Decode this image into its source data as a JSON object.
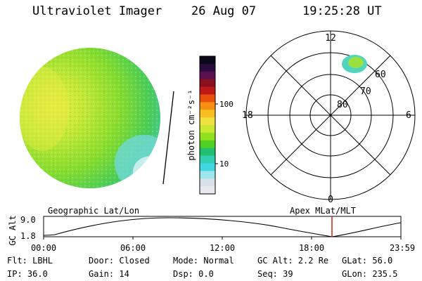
{
  "header": {
    "instrument": "Ultraviolet Imager",
    "date": "26 Aug 07",
    "time": "19:25:28 UT"
  },
  "colorbar": {
    "unit_label": "photon cm⁻²s⁻¹",
    "ticks": [
      "100",
      "10"
    ],
    "colors": [
      "#0a0a1a",
      "#2a0d3d",
      "#5a1050",
      "#8a1020",
      "#c01818",
      "#e85010",
      "#f59010",
      "#f7c020",
      "#f0e040",
      "#c8e830",
      "#90e020",
      "#50d020",
      "#20c070",
      "#30d0b0",
      "#40d8e0",
      "#9ee6ee",
      "#d8e0e8",
      "#e8e8ee"
    ]
  },
  "polar_plot": {
    "mlt_labels": [
      "12",
      "18",
      "6",
      "0"
    ],
    "lat_labels": [
      "60",
      "70",
      "80"
    ]
  },
  "orbit_strip": {
    "left_title": "Geographic Lat/Lon",
    "right_title": "Apex MLat/MLT",
    "y_axis_label": "GC Alt",
    "y_ticks": [
      "9.0",
      "1.8"
    ],
    "x_ticks": [
      "00:00",
      "06:00",
      "12:00",
      "18:00",
      "23:59"
    ],
    "current_marker_color": "#d02010"
  },
  "status": {
    "flt": "Flt: LBHL",
    "ip": "IP: 36.0",
    "door": "Door: Closed",
    "gain": "Gain: 14",
    "mode": "Mode: Normal",
    "dsp": "Dsp:     0.0",
    "gc_alt": "GC Alt: 2.2 Re",
    "seq": "Seq: 39",
    "glat": "GLat:  56.0",
    "glon": "GLon: 235.5"
  }
}
